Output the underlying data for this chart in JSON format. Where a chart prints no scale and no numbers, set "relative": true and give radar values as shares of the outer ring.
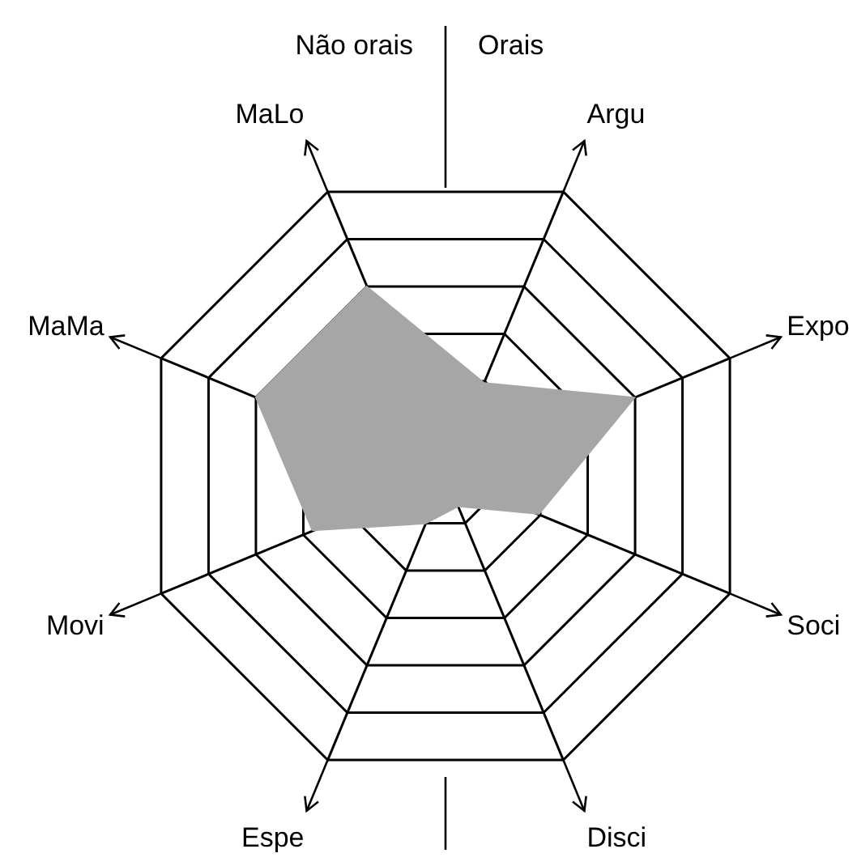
{
  "chart_data": {
    "type": "radar",
    "relative": true,
    "categories": [
      "Argu",
      "Expo",
      "Soci",
      "Disci",
      "Espe",
      "Movi",
      "MaMa",
      "MaLo"
    ],
    "series": [
      {
        "color": "#a6a6a6",
        "values": [
          0.33,
          0.67,
          0.33,
          0.11,
          0.17,
          0.47,
          0.67,
          0.67
        ]
      }
    ],
    "annotations": [
      "Não orais",
      "Orais"
    ]
  }
}
